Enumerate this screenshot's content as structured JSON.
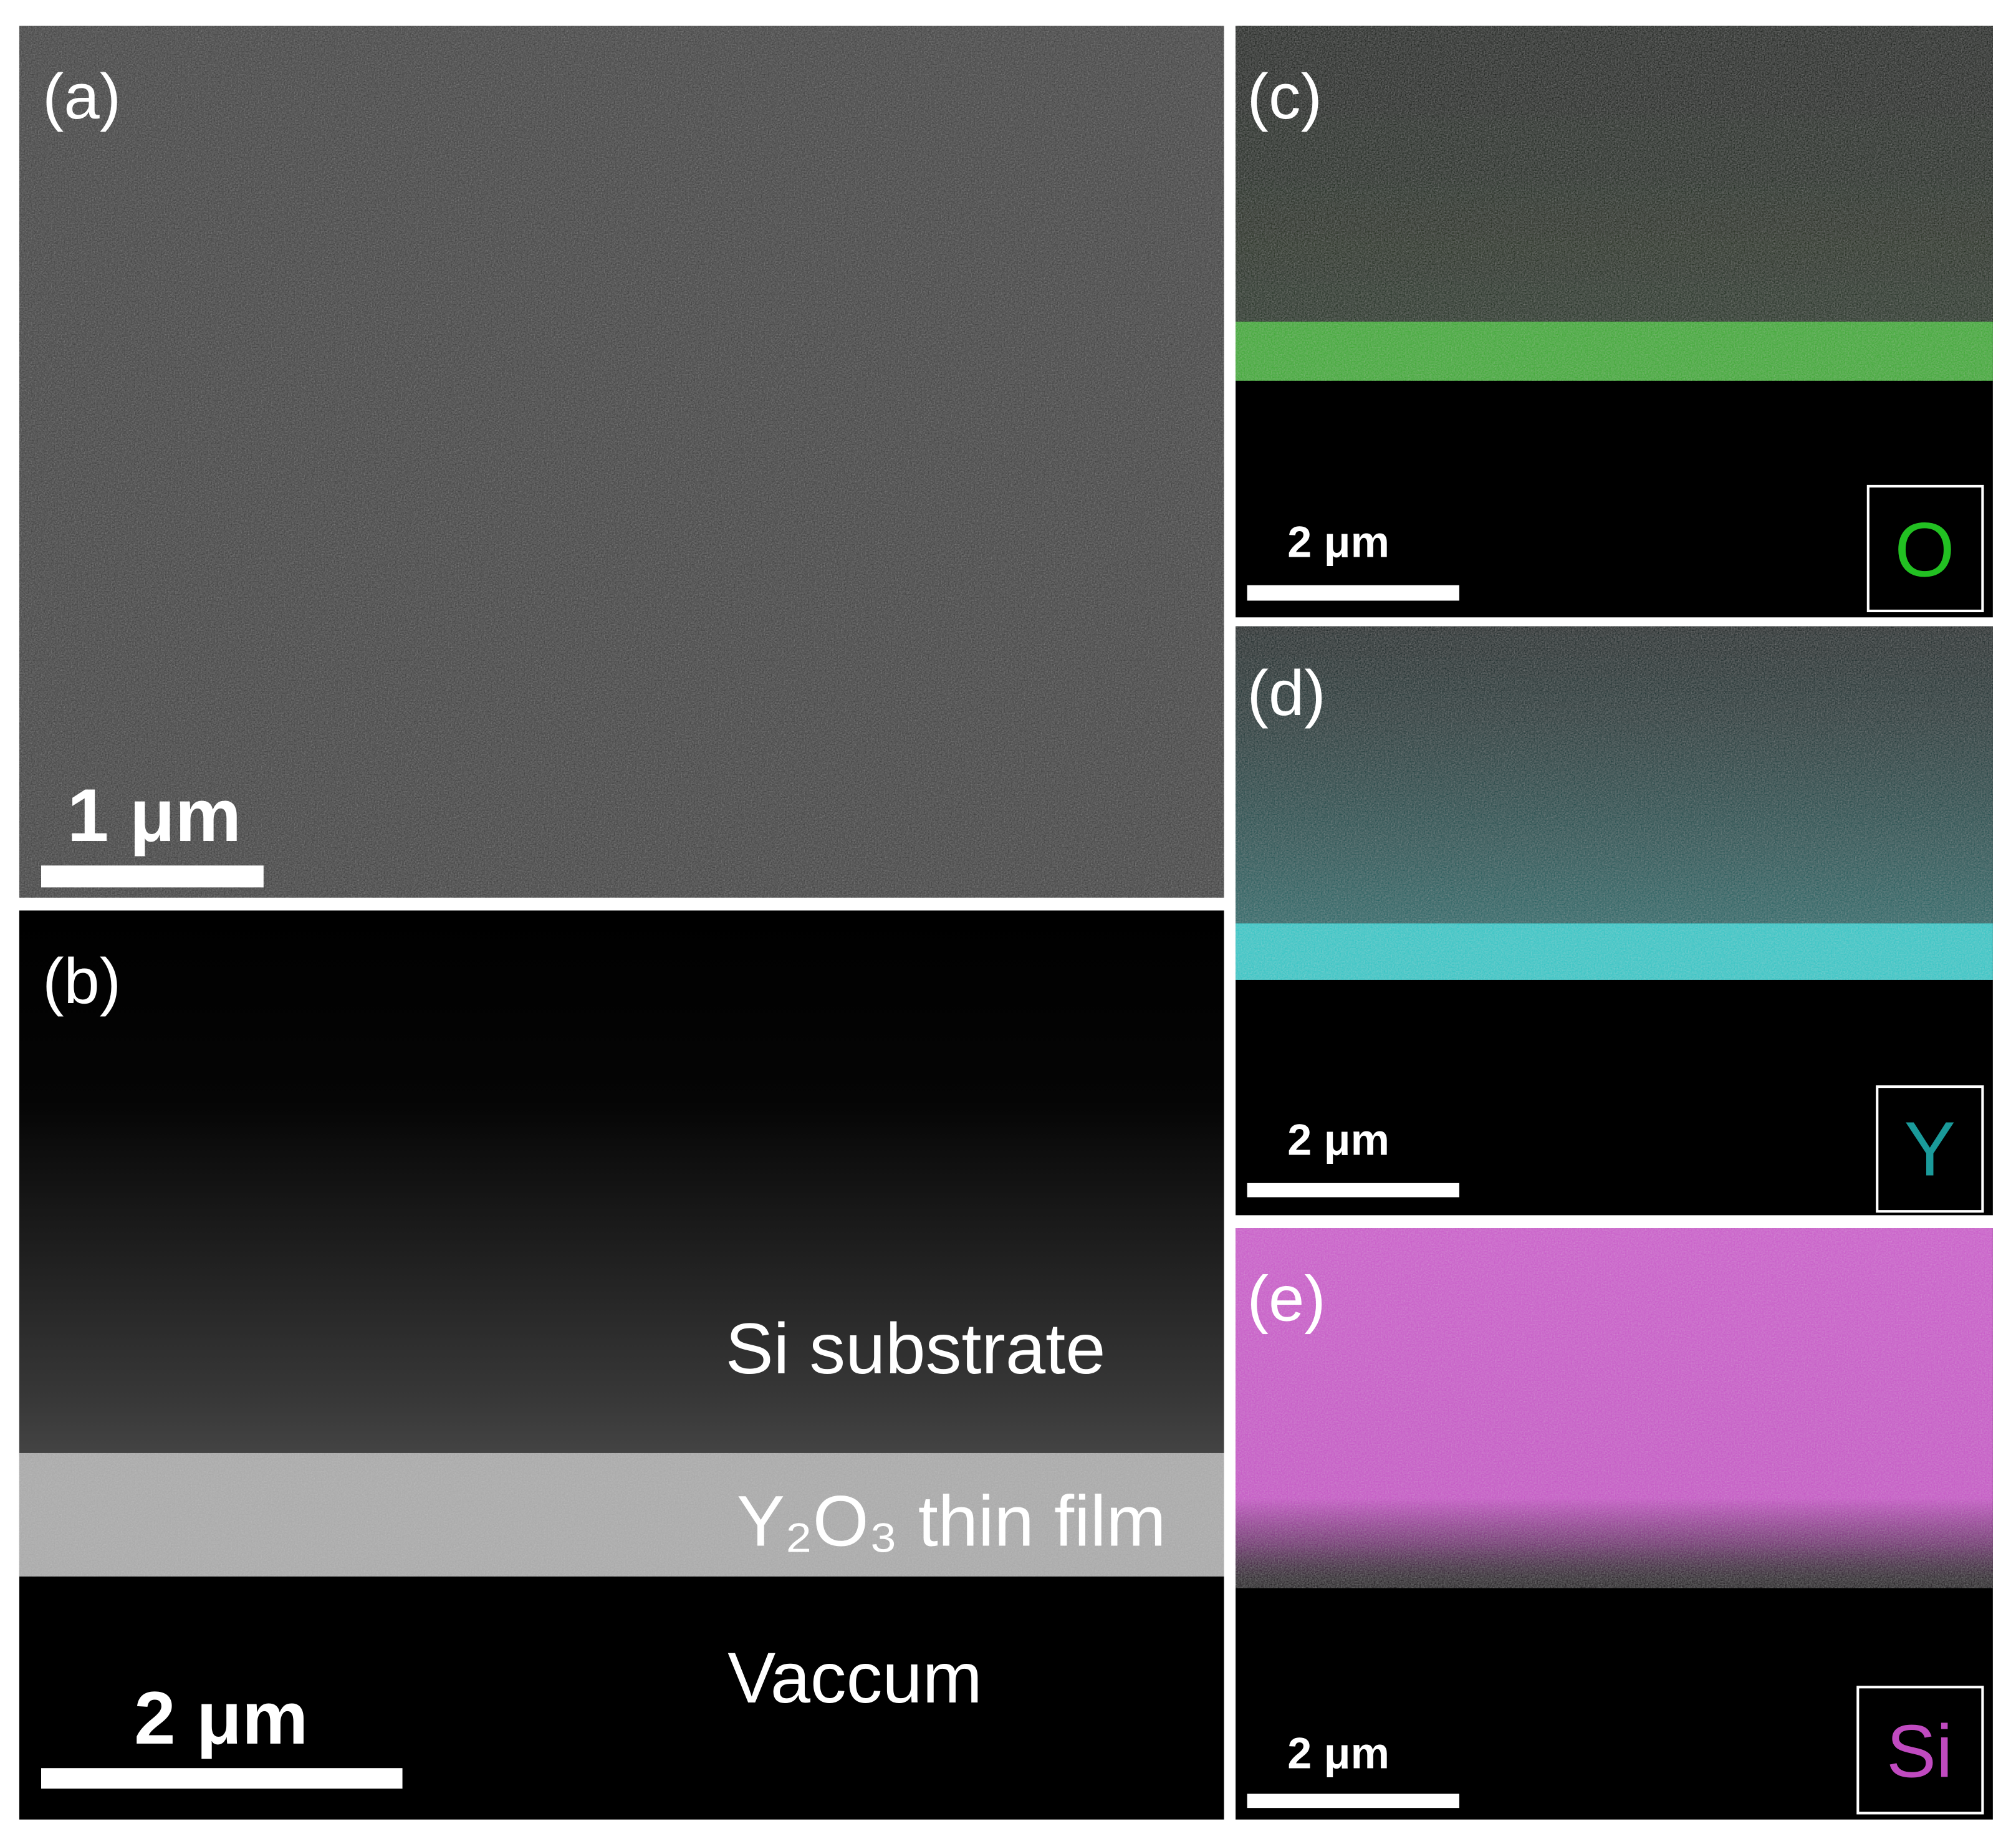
{
  "panels": [
    {
      "label": "(a)",
      "scale_bar": "1 μm"
    },
    {
      "label": "(b)",
      "scale_bar": "2 μm",
      "annotations": [
        "Si substrate",
        "Y₂O₃ thin film",
        "Vaccum"
      ]
    },
    {
      "label": "(c)",
      "scale_bar": "2 μm",
      "element": "O"
    },
    {
      "label": "(d)",
      "scale_bar": "2 μm",
      "element": "Y"
    },
    {
      "label": "(e)",
      "scale_bar": "2 μm",
      "element": "Si"
    }
  ]
}
